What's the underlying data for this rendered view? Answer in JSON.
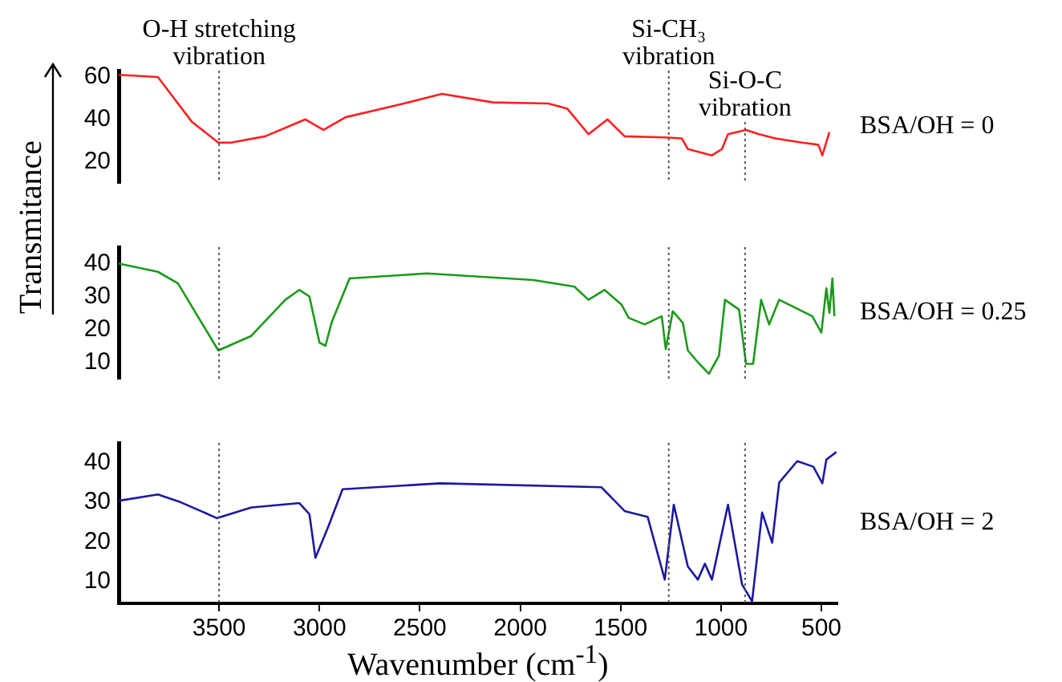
{
  "chart_data": [
    {
      "type": "line",
      "xticks": [
        3500,
        3000,
        2500,
        2000,
        1500,
        1000,
        500
      ],
      "ylim": [
        10,
        63
      ],
      "yticks": [
        20,
        40,
        60
      ],
      "tick_labels": "y",
      "grid": false,
      "legend": false,
      "marker": "none",
      "ref_lines": [
        {
          "axis": "x",
          "value": 3500,
          "label": "O-H stretching vibration",
          "color": "#555555",
          "line_style": "dotted"
        },
        {
          "axis": "x",
          "value": 1260,
          "label": "Si-CH₃ vibration",
          "color": "#555555",
          "line_style": "dotted"
        },
        {
          "axis": "x",
          "value": 880,
          "label": "Si-O-C vibration",
          "color": "#555555",
          "line_style": "dotted"
        }
      ],
      "series": [
        {
          "name": "BSA/OH = 0",
          "color": "#ff2020",
          "x": [
            4000,
            3805,
            3757,
            3637,
            3504,
            3440,
            3270,
            3070,
            2980,
            2870,
            2600,
            2390,
            2135,
            1860,
            1765,
            1660,
            1565,
            1480,
            1280,
            1195,
            1165,
            1045,
            995,
            965,
            875,
            810,
            730,
            595,
            515,
            495,
            460
          ],
          "values": [
            61,
            60,
            54,
            39,
            29,
            29,
            32,
            40,
            35,
            41,
            47,
            52,
            48,
            47.5,
            45,
            33,
            40,
            32,
            31.5,
            31,
            26,
            23,
            26,
            33,
            35,
            33,
            31,
            29,
            28,
            23,
            34
          ]
        }
      ]
    },
    {
      "type": "line",
      "xticks": [
        3500,
        3000,
        2500,
        2000,
        1500,
        1000,
        500
      ],
      "ylim": [
        5,
        45
      ],
      "yticks": [
        10,
        20,
        30,
        40
      ],
      "tick_labels": "y",
      "grid": false,
      "legend": false,
      "marker": "none",
      "ylabel": "Transmitance",
      "ref_lines": [
        {
          "axis": "x",
          "value": 3500,
          "color": "#555555",
          "line_style": "dotted"
        },
        {
          "axis": "x",
          "value": 1260,
          "color": "#555555",
          "line_style": "dotted"
        },
        {
          "axis": "x",
          "value": 880,
          "color": "#555555",
          "line_style": "dotted"
        }
      ],
      "series": [
        {
          "name": "BSA/OH = 0.25",
          "color": "#1a9a1a",
          "x": [
            4000,
            3805,
            3705,
            3504,
            3340,
            3170,
            3100,
            3050,
            3000,
            2970,
            2940,
            2850,
            2465,
            1935,
            1730,
            1660,
            1580,
            1495,
            1460,
            1380,
            1295,
            1275,
            1240,
            1190,
            1165,
            1115,
            1060,
            1010,
            980,
            910,
            875,
            840,
            800,
            760,
            710,
            545,
            500,
            475,
            460,
            445,
            435
          ],
          "values": [
            40,
            37.5,
            34,
            13.6,
            18,
            29,
            32,
            30,
            16,
            15,
            22,
            35.5,
            37,
            35,
            33,
            29,
            32,
            27.5,
            23.5,
            21.5,
            24,
            14,
            25.5,
            22,
            13.6,
            10,
            6.5,
            12,
            29,
            26,
            9.5,
            9.5,
            29,
            21.5,
            29,
            24,
            19,
            32.5,
            25,
            35.5,
            24
          ]
        }
      ]
    },
    {
      "type": "line",
      "xlim": [
        4000,
        420
      ],
      "ylim": [
        4.5,
        45
      ],
      "xticks": [
        3500,
        3000,
        2500,
        2000,
        1500,
        1000,
        500
      ],
      "yticks": [
        10,
        20,
        30,
        40
      ],
      "grid": false,
      "legend": false,
      "marker": "none",
      "xlabel": "Wavenumber (cm$^{-1}$)",
      "ref_lines": [
        {
          "axis": "x",
          "value": 3500,
          "color": "#555555",
          "line_style": "dotted"
        },
        {
          "axis": "x",
          "value": 1260,
          "color": "#555555",
          "line_style": "dotted"
        },
        {
          "axis": "x",
          "value": 880,
          "color": "#555555",
          "line_style": "dotted"
        }
      ],
      "series": [
        {
          "name": "BSA/OH = 2",
          "color": "#1a1aa0",
          "x": [
            4000,
            3805,
            3690,
            3510,
            3340,
            3100,
            3050,
            3020,
            2955,
            2885,
            2400,
            1595,
            1480,
            1365,
            1280,
            1235,
            1165,
            1115,
            1080,
            1045,
            965,
            895,
            845,
            795,
            745,
            710,
            620,
            540,
            495,
            475,
            425
          ],
          "values": [
            30.4,
            32,
            30,
            26,
            28.7,
            29.8,
            27,
            16,
            24,
            33.3,
            34.8,
            33.8,
            27.8,
            26.3,
            10.5,
            29.4,
            13.8,
            10.5,
            14.5,
            10.5,
            29.4,
            9.3,
            5,
            27.4,
            19.8,
            35,
            40.4,
            39,
            34.8,
            40.8,
            42.7
          ]
        }
      ]
    }
  ]
}
